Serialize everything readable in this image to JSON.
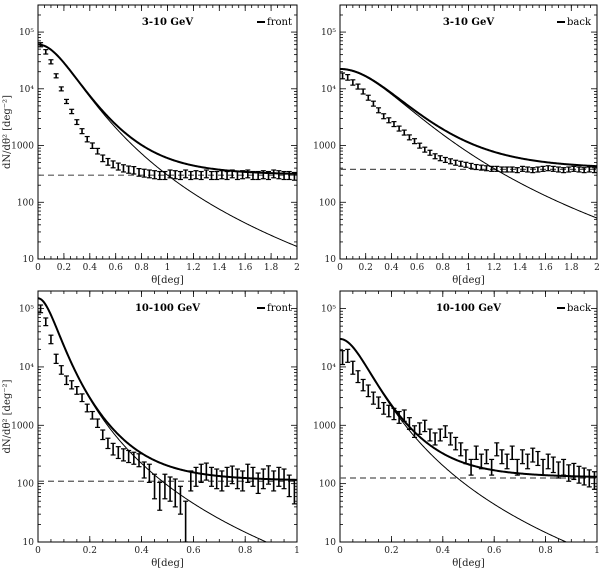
{
  "chart_data": [
    {
      "type": "scatter",
      "title": "3-10 GeV",
      "legend": "front",
      "xlabel": "θ[deg]",
      "ylabel": "dN/dθ² [deg⁻²]",
      "xlim": [
        0,
        2
      ],
      "ylim": [
        10,
        300000
      ],
      "yscale": "log",
      "xticks": [
        0,
        0.2,
        0.4,
        0.6,
        0.8,
        1,
        1.2,
        1.4,
        1.6,
        1.8,
        2
      ],
      "xtick_labels": [
        "0",
        "0.2",
        "0.4",
        "0.6",
        "0.8",
        "1",
        "1.2",
        "1.4",
        "1.6",
        "1.8",
        "2"
      ],
      "ytick_labels": [
        "10",
        "100",
        "1000",
        "10⁴",
        "10⁵"
      ],
      "background": 300,
      "psf": {
        "amp": 60000,
        "sigma": 0.15,
        "gamma": 2.2
      },
      "points": {
        "x": [
          0.02,
          0.06,
          0.1,
          0.14,
          0.18,
          0.22,
          0.26,
          0.3,
          0.34,
          0.38,
          0.42,
          0.46,
          0.5,
          0.54,
          0.58,
          0.62,
          0.66,
          0.7,
          0.74,
          0.78,
          0.82,
          0.86,
          0.9,
          0.94,
          0.98,
          1.02,
          1.06,
          1.1,
          1.14,
          1.18,
          1.22,
          1.26,
          1.3,
          1.34,
          1.38,
          1.42,
          1.46,
          1.5,
          1.54,
          1.58,
          1.62,
          1.66,
          1.7,
          1.74,
          1.78,
          1.82,
          1.86,
          1.9,
          1.94,
          1.98
        ],
        "y": [
          60000,
          45000,
          30000,
          17000,
          10000,
          6000,
          4000,
          2600,
          1800,
          1300,
          1000,
          800,
          600,
          520,
          470,
          430,
          400,
          380,
          370,
          340,
          330,
          320,
          310,
          300,
          300,
          320,
          310,
          300,
          320,
          300,
          310,
          300,
          320,
          300,
          300,
          310,
          300,
          320,
          300,
          310,
          320,
          300,
          300,
          310,
          300,
          320,
          310,
          300,
          300,
          290
        ],
        "err": [
          5000,
          4000,
          2500,
          1400,
          800,
          500,
          350,
          250,
          180,
          140,
          110,
          90,
          80,
          70,
          65,
          60,
          58,
          55,
          55,
          52,
          52,
          50,
          50,
          48,
          48,
          50,
          50,
          48,
          50,
          48,
          50,
          48,
          50,
          48,
          48,
          50,
          48,
          50,
          48,
          50,
          50,
          48,
          48,
          50,
          48,
          50,
          50,
          48,
          48,
          45
        ]
      }
    },
    {
      "type": "scatter",
      "title": "3-10 GeV",
      "legend": "back",
      "xlabel": "θ[deg]",
      "ylabel": "",
      "xlim": [
        0,
        2
      ],
      "ylim": [
        10,
        300000
      ],
      "yscale": "log",
      "xticks": [
        0,
        0.2,
        0.4,
        0.6,
        0.8,
        1,
        1.2,
        1.4,
        1.6,
        1.8,
        2
      ],
      "xtick_labels": [
        "0",
        "0.2",
        "0.4",
        "0.6",
        "0.8",
        "1",
        "1.2",
        "1.4",
        "1.6",
        "1.8",
        "2"
      ],
      "ytick_labels": [
        "10",
        "100",
        "1000",
        "10⁴",
        "10⁵"
      ],
      "background": 380,
      "psf": {
        "amp": 22000,
        "sigma": 0.25,
        "gamma": 2.2
      },
      "points": {
        "x": [
          0.02,
          0.06,
          0.1,
          0.14,
          0.18,
          0.22,
          0.26,
          0.3,
          0.34,
          0.38,
          0.42,
          0.46,
          0.5,
          0.54,
          0.58,
          0.62,
          0.66,
          0.7,
          0.74,
          0.78,
          0.82,
          0.86,
          0.9,
          0.94,
          0.98,
          1.02,
          1.06,
          1.1,
          1.14,
          1.18,
          1.22,
          1.26,
          1.3,
          1.34,
          1.38,
          1.42,
          1.46,
          1.5,
          1.54,
          1.58,
          1.62,
          1.66,
          1.7,
          1.74,
          1.78,
          1.82,
          1.86,
          1.9,
          1.94,
          1.98
        ],
        "y": [
          17000,
          16000,
          13000,
          11000,
          9000,
          7000,
          5500,
          4200,
          3300,
          2800,
          2400,
          2000,
          1700,
          1400,
          1200,
          1000,
          850,
          750,
          650,
          600,
          560,
          530,
          500,
          480,
          460,
          440,
          420,
          410,
          400,
          390,
          390,
          380,
          380,
          380,
          370,
          390,
          380,
          370,
          380,
          390,
          400,
          390,
          380,
          370,
          380,
          390,
          380,
          370,
          380,
          370
        ],
        "err": [
          2000,
          1800,
          1400,
          1100,
          900,
          700,
          550,
          420,
          330,
          280,
          240,
          200,
          170,
          140,
          120,
          100,
          85,
          75,
          65,
          60,
          56,
          53,
          50,
          48,
          46,
          44,
          42,
          41,
          40,
          39,
          39,
          38,
          38,
          38,
          37,
          39,
          38,
          37,
          38,
          39,
          40,
          39,
          38,
          37,
          38,
          39,
          38,
          37,
          38,
          37
        ]
      }
    },
    {
      "type": "scatter",
      "title": "10-100 GeV",
      "legend": "front",
      "xlabel": "θ[deg]",
      "ylabel": "dN/dθ² [deg⁻²]",
      "xlim": [
        0,
        1
      ],
      "ylim": [
        10,
        200000
      ],
      "yscale": "log",
      "xticks": [
        0,
        0.2,
        0.4,
        0.6,
        0.8,
        1
      ],
      "xtick_labels": [
        "0",
        "0.2",
        "0.4",
        "0.6",
        "0.8",
        "1"
      ],
      "ytick_labels": [
        "10",
        "100",
        "1000",
        "10⁴",
        "10⁵"
      ],
      "background": 110,
      "psf": {
        "amp": 150000,
        "sigma": 0.04,
        "gamma": 2.0
      },
      "points": {
        "x": [
          0.01,
          0.03,
          0.05,
          0.07,
          0.09,
          0.11,
          0.13,
          0.15,
          0.17,
          0.19,
          0.21,
          0.23,
          0.25,
          0.27,
          0.29,
          0.31,
          0.33,
          0.35,
          0.37,
          0.39,
          0.41,
          0.43,
          0.45,
          0.47,
          0.49,
          0.51,
          0.53,
          0.55,
          0.57,
          0.59,
          0.61,
          0.63,
          0.65,
          0.67,
          0.69,
          0.71,
          0.73,
          0.75,
          0.77,
          0.79,
          0.81,
          0.83,
          0.85,
          0.87,
          0.89,
          0.91,
          0.93,
          0.95,
          0.97,
          0.99
        ],
        "y": [
          100000,
          60000,
          30000,
          14000,
          9000,
          6000,
          5000,
          4000,
          3000,
          2000,
          1500,
          1100,
          700,
          500,
          400,
          350,
          320,
          300,
          280,
          260,
          180,
          160,
          100,
          70,
          100,
          90,
          80,
          60,
          30,
          120,
          140,
          160,
          170,
          140,
          130,
          120,
          140,
          150,
          130,
          120,
          160,
          140,
          110,
          130,
          150,
          120,
          140,
          130,
          100,
          80
        ],
        "err": [
          15000,
          9000,
          5000,
          2500,
          1500,
          1000,
          800,
          600,
          450,
          300,
          220,
          180,
          130,
          100,
          90,
          80,
          75,
          70,
          65,
          65,
          55,
          55,
          45,
          35,
          45,
          40,
          40,
          30,
          20,
          45,
          50,
          55,
          55,
          50,
          48,
          45,
          50,
          50,
          48,
          45,
          55,
          50,
          42,
          48,
          52,
          45,
          50,
          48,
          40,
          35
        ]
      }
    },
    {
      "type": "scatter",
      "title": "10-100 GeV",
      "legend": "back",
      "xlabel": "θ[deg]",
      "ylabel": "",
      "xlim": [
        0,
        1
      ],
      "ylim": [
        10,
        200000
      ],
      "yscale": "log",
      "xticks": [
        0,
        0.2,
        0.4,
        0.6,
        0.8,
        1
      ],
      "xtick_labels": [
        "0",
        "0.2",
        "0.4",
        "0.6",
        "0.8",
        "1"
      ],
      "ytick_labels": [
        "10",
        "100",
        "1000",
        "10⁴",
        "10⁵"
      ],
      "background": 125,
      "psf": {
        "amp": 30000,
        "sigma": 0.06,
        "gamma": 2.0
      },
      "points": {
        "x": [
          0.01,
          0.03,
          0.05,
          0.07,
          0.09,
          0.11,
          0.13,
          0.15,
          0.17,
          0.19,
          0.21,
          0.23,
          0.25,
          0.27,
          0.29,
          0.31,
          0.33,
          0.35,
          0.37,
          0.39,
          0.41,
          0.43,
          0.45,
          0.47,
          0.49,
          0.51,
          0.53,
          0.55,
          0.57,
          0.59,
          0.61,
          0.63,
          0.65,
          0.67,
          0.69,
          0.71,
          0.73,
          0.75,
          0.77,
          0.79,
          0.81,
          0.83,
          0.85,
          0.87,
          0.89,
          0.91,
          0.93,
          0.95,
          0.97,
          0.99
        ],
        "y": [
          15000,
          16000,
          10000,
          7000,
          5000,
          4000,
          3000,
          2500,
          2000,
          1800,
          1600,
          1400,
          1500,
          1100,
          800,
          900,
          1000,
          700,
          600,
          700,
          800,
          600,
          500,
          400,
          300,
          200,
          350,
          250,
          300,
          200,
          400,
          300,
          250,
          350,
          200,
          300,
          250,
          320,
          280,
          200,
          250,
          220,
          180,
          200,
          160,
          170,
          150,
          140,
          130,
          120
        ],
        "err": [
          4000,
          4000,
          2500,
          1600,
          1100,
          900,
          700,
          550,
          450,
          400,
          350,
          320,
          330,
          250,
          180,
          200,
          220,
          160,
          140,
          160,
          180,
          140,
          120,
          100,
          80,
          60,
          90,
          70,
          80,
          60,
          100,
          80,
          70,
          90,
          60,
          80,
          70,
          85,
          75,
          60,
          70,
          65,
          55,
          60,
          50,
          52,
          48,
          45,
          42,
          40
        ]
      }
    }
  ]
}
